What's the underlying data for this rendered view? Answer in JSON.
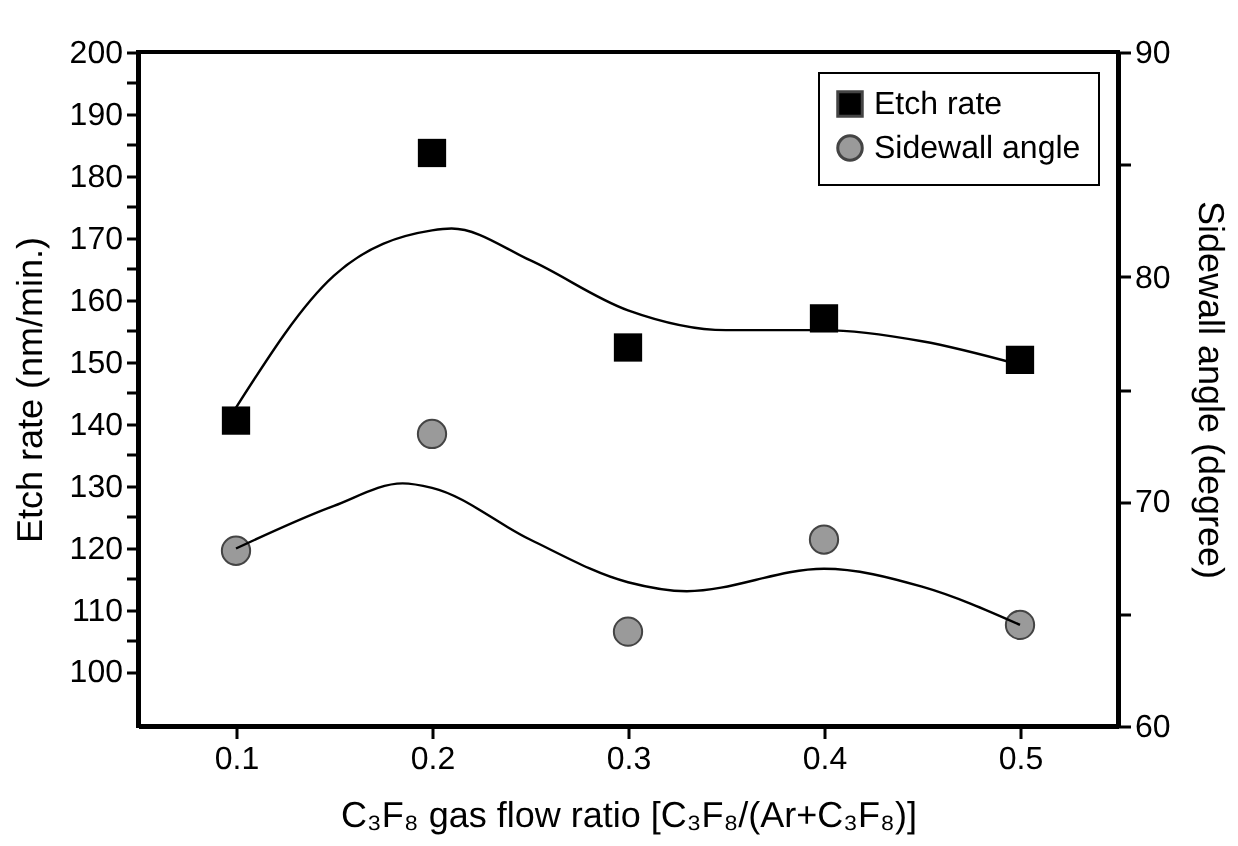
{
  "chart_data": {
    "type": "scatter",
    "xlabel": "C₃F₈ gas flow ratio [C₃F₈/(Ar+C₃F₈)]",
    "ylabel": "Etch rate (nm/min.)",
    "y2label": "Sidewall angle (degree)",
    "xlim": [
      0.05,
      0.55
    ],
    "xticks": [
      0.1,
      0.2,
      0.3,
      0.4,
      0.5
    ],
    "ylim": [
      91.2,
      200
    ],
    "yticks": [
      100,
      {
        "value": 105,
        "label": null
      },
      110,
      {
        "value": 115,
        "label": null
      },
      120,
      {
        "value": 125,
        "label": null
      },
      130,
      {
        "value": 135,
        "label": null
      },
      140,
      {
        "value": 145,
        "label": null
      },
      150,
      {
        "value": 155,
        "label": null
      },
      160,
      {
        "value": 165,
        "label": null
      },
      170,
      {
        "value": 175,
        "label": null
      },
      180,
      {
        "value": 185,
        "label": null
      },
      190,
      {
        "value": 195,
        "label": null
      },
      200
    ],
    "y2lim": [
      60,
      90
    ],
    "y2ticks": [
      60,
      {
        "value": 65,
        "label": null
      },
      70,
      {
        "value": 75,
        "label": null
      },
      80,
      {
        "value": 85,
        "label": null
      },
      90
    ],
    "grid": false,
    "legend": "top right",
    "series": [
      {
        "name": "Etch rate",
        "type": "scatter",
        "marker": "square",
        "color": "#000000",
        "x": [
          0.1,
          0.2,
          0.3,
          0.4,
          0.5
        ],
        "values": [
          140.5,
          183.7,
          152.3,
          157.0,
          150.3
        ]
      },
      {
        "name": "Sidewall angle",
        "type": "scatter",
        "marker": "circle",
        "color": "#9a9a9a",
        "axis": "y2",
        "x": [
          0.1,
          0.2,
          0.3,
          0.4,
          0.5
        ],
        "values": [
          67.8,
          73.0,
          64.2,
          68.3,
          64.5
        ]
      },
      {
        "type": "line",
        "color": "#000000",
        "line_style": "solid",
        "x": [
          0.1,
          0.15,
          0.2,
          0.21,
          0.25,
          0.3,
          0.35,
          0.4,
          0.45,
          0.5
        ],
        "values": [
          142.6,
          163.9,
          171.2,
          171.5,
          166.4,
          158.3,
          155.1,
          155.1,
          153.3,
          149.5
        ]
      },
      {
        "type": "line",
        "color": "#000000",
        "line_style": "solid",
        "axis": "y2",
        "x": [
          0.1,
          0.15,
          0.185,
          0.2,
          0.25,
          0.3,
          0.33,
          0.4,
          0.45,
          0.5
        ],
        "values": [
          67.9,
          69.8,
          70.8,
          70.6,
          68.3,
          66.4,
          66.0,
          67.0,
          66.2,
          64.5
        ]
      }
    ]
  }
}
